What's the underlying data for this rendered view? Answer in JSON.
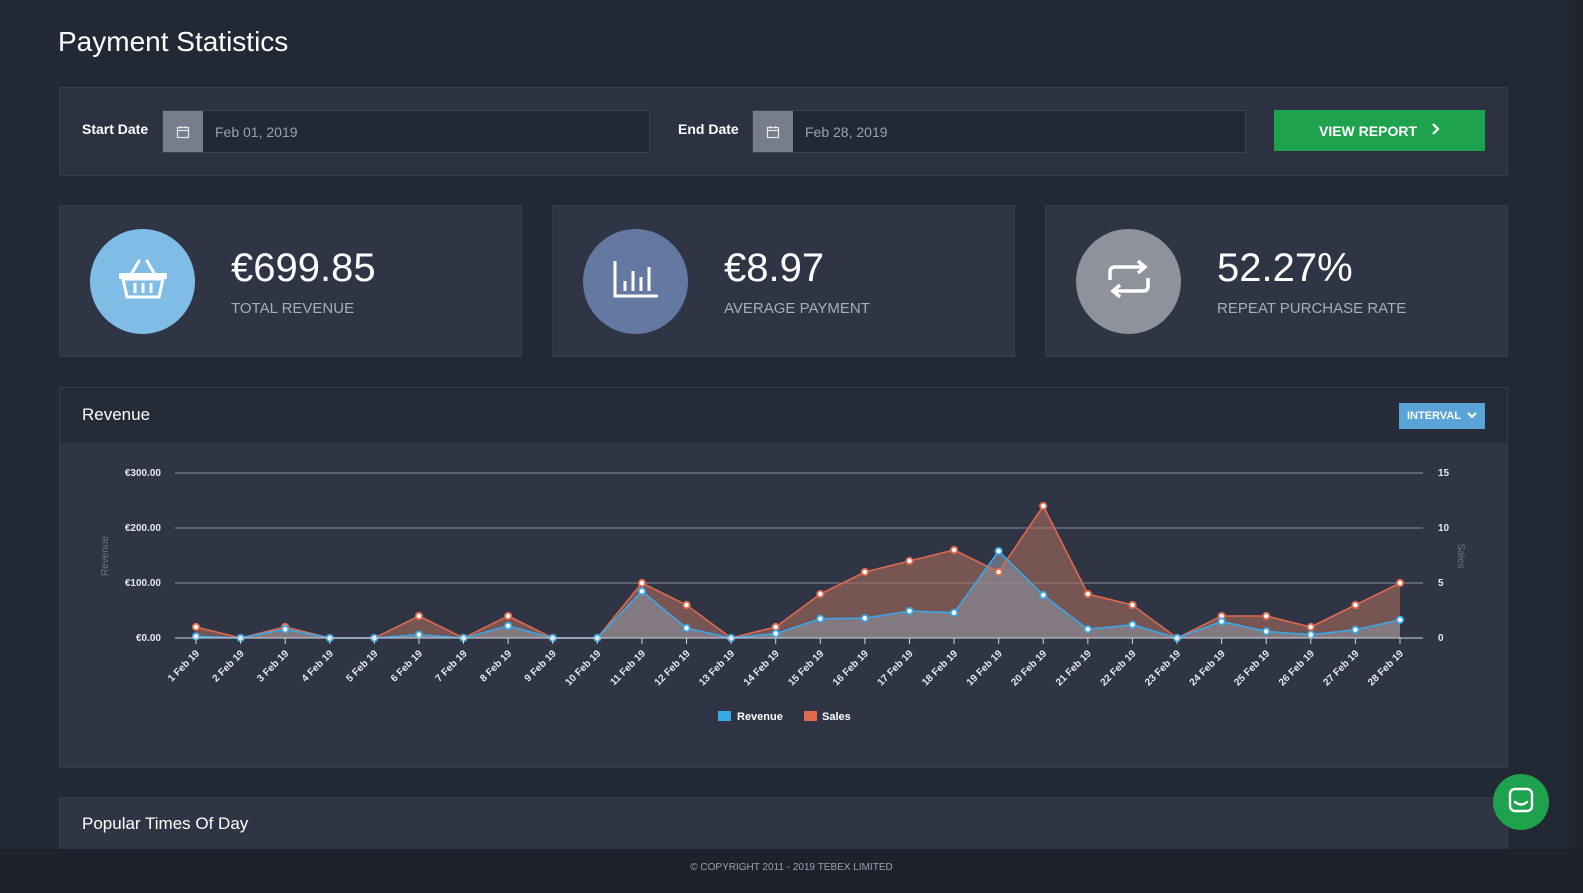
{
  "page": {
    "title": "Payment Statistics"
  },
  "filters": {
    "start_label": "Start Date",
    "start_value": "Feb 01, 2019",
    "end_label": "End Date",
    "end_value": "Feb 28, 2019",
    "view_report_label": "VIEW REPORT"
  },
  "stats": [
    {
      "value": "€699.85",
      "label": "TOTAL REVENUE",
      "icon": "basket-icon",
      "color": "#7fbde6"
    },
    {
      "value": "€8.97",
      "label": "AVERAGE PAYMENT",
      "icon": "bar-chart-icon",
      "color": "#6379a1"
    },
    {
      "value": "52.27%",
      "label": "REPEAT PURCHASE RATE",
      "icon": "repeat-icon",
      "color": "#8d929b"
    }
  ],
  "revenue_panel": {
    "title": "Revenue",
    "interval_label": "INTERVAL"
  },
  "popular_panel": {
    "title": "Popular Times Of Day"
  },
  "footer": {
    "copyright": "© COPYRIGHT 2011 - 2019 TEBEX LIMITED"
  },
  "colors": {
    "revenue": "#3aa7e6",
    "sales": "#e0694d",
    "accent_green": "#1fa24e"
  },
  "chart_data": {
    "type": "area",
    "categories": [
      "1 Feb 19",
      "2 Feb 19",
      "3 Feb 19",
      "4 Feb 19",
      "5 Feb 19",
      "6 Feb 19",
      "7 Feb 19",
      "8 Feb 19",
      "9 Feb 19",
      "10 Feb 19",
      "11 Feb 19",
      "12 Feb 19",
      "13 Feb 19",
      "14 Feb 19",
      "15 Feb 19",
      "16 Feb 19",
      "17 Feb 19",
      "18 Feb 19",
      "19 Feb 19",
      "20 Feb 19",
      "21 Feb 19",
      "22 Feb 19",
      "23 Feb 19",
      "24 Feb 19",
      "25 Feb 19",
      "26 Feb 19",
      "27 Feb 19",
      "28 Feb 19"
    ],
    "series": [
      {
        "name": "Revenue",
        "axis": "left",
        "values": [
          3,
          0,
          16,
          0,
          0,
          6,
          0,
          22,
          0,
          0,
          85,
          18,
          0,
          8,
          35,
          36,
          49,
          46,
          158,
          78,
          16,
          24,
          0,
          30,
          12,
          6,
          15,
          33
        ]
      },
      {
        "name": "Sales",
        "axis": "right",
        "values": [
          1,
          0,
          1,
          0,
          0,
          2,
          0,
          2,
          0,
          0,
          5,
          3,
          0,
          1,
          4,
          6,
          7,
          8,
          6,
          12,
          4,
          3,
          0,
          2,
          2,
          1,
          3,
          5
        ]
      }
    ],
    "ylabel": "Revenue",
    "y2label": "Sales",
    "ylim": [
      0,
      300
    ],
    "y2lim": [
      0,
      15
    ],
    "yticks": [
      "€0.00",
      "€100.00",
      "€200.00",
      "€300.00"
    ],
    "y2ticks": [
      "0",
      "5",
      "10",
      "15"
    ],
    "grid": true,
    "legend": "bottom-center"
  }
}
